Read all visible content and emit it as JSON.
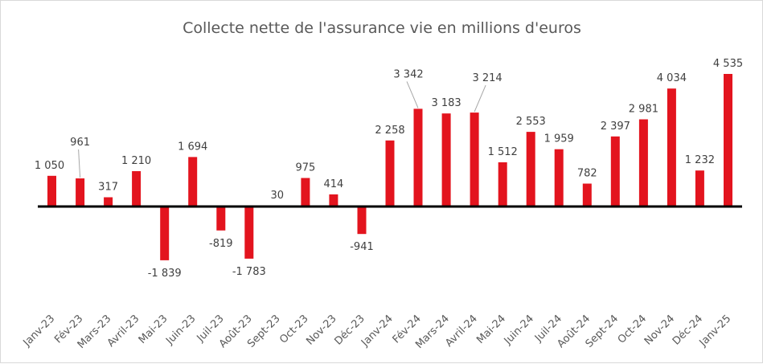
{
  "chart_data": {
    "type": "bar",
    "title": "Collecte nette de l'assurance vie en millions d'euros",
    "xlabel": "",
    "ylabel": "",
    "categories": [
      "Janv-23",
      "Fév-23",
      "Mars-23",
      "Avril-23",
      "Mai-23",
      "Juin-23",
      "Juil-23",
      "Août-23",
      "Sept-23",
      "Oct-23",
      "Nov-23",
      "Déc-23",
      "Janv-24",
      "Fév-24",
      "Mars-24",
      "Avril-24",
      "Mai-24",
      "Juin-24",
      "Juil-24",
      "Août-24",
      "Sept-24",
      "Oct-24",
      "Nov-24",
      "Déc-24",
      "Janv-25"
    ],
    "values": [
      1050,
      961,
      317,
      1210,
      -1839,
      1694,
      -819,
      -1783,
      30,
      975,
      414,
      -941,
      2258,
      3342,
      3183,
      3214,
      1512,
      2553,
      1959,
      782,
      2397,
      2981,
      4034,
      1232,
      4535
    ],
    "value_labels": [
      "1 050",
      "961",
      "317",
      "1 210",
      "-1 839",
      "1 694",
      "-819",
      "-1 783",
      "30",
      "975",
      "414",
      "-941",
      "2 258",
      "3 342",
      "3 183",
      "3 214",
      "1 512",
      "2 553",
      "1 959",
      "782",
      "2 397",
      "2 981",
      "4 034",
      "1 232",
      "4 535"
    ],
    "ylim": [
      -2200,
      4900
    ],
    "grid": false,
    "legend": "none",
    "colors": {
      "bar": "#e3141e",
      "axis": "#000000",
      "leader": "#a6a6a6"
    }
  }
}
